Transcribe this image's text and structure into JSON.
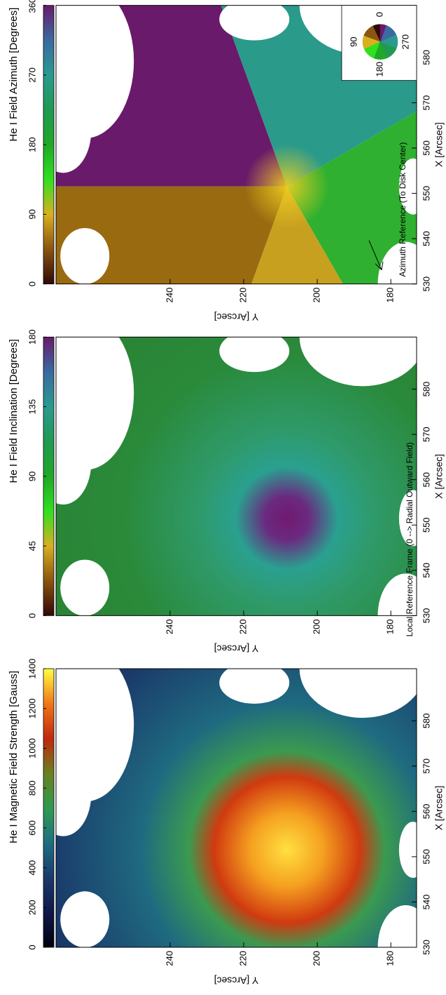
{
  "chart_data": [
    {
      "type": "image",
      "title": "He I Magnetic Field Strength [Gauss]",
      "xlabel": "X [Arcsec]",
      "ylabel": "Y [Arcsec]",
      "xlim": [
        530,
        591.5
      ],
      "xticks": [
        530,
        540,
        550,
        560,
        570,
        580
      ],
      "ylim": [
        173,
        271
      ],
      "yticks": [
        180,
        200,
        220,
        240
      ],
      "colorbar": {
        "lim": [
          0,
          1400
        ],
        "ticks": [
          0,
          200,
          400,
          600,
          800,
          1000,
          1200,
          1400
        ],
        "colors": [
          "#000010",
          "#101848",
          "#1a3a6a",
          "#1f6f80",
          "#2f9a50",
          "#6a8020",
          "#c02810",
          "#f07818",
          "#ffff40"
        ]
      }
    },
    {
      "type": "image",
      "title": "He I Field Inclination [Degrees]",
      "xlabel": "X [Arcsec]",
      "ylabel": "Y [Arcsec]",
      "xlim": [
        530,
        591.5
      ],
      "xticks": [
        530,
        540,
        550,
        560,
        570,
        580
      ],
      "ylim": [
        173,
        271
      ],
      "yticks": [
        180,
        200,
        220,
        240
      ],
      "annotation": "Local Reference Frame (0 --> Radial Outward Field)",
      "colorbar": {
        "lim": [
          0,
          180
        ],
        "ticks": [
          0,
          45,
          90,
          135,
          180
        ],
        "colors": [
          "#300808",
          "#8a5510",
          "#d8b020",
          "#30e020",
          "#20a828",
          "#209a50",
          "#2a9a90",
          "#3a6aa0",
          "#6a1a6a"
        ]
      }
    },
    {
      "type": "image",
      "title": "He I Field Azimuth [Degrees]",
      "xlabel": "X [Arcsec]",
      "ylabel": "Y [Arcsec]",
      "xlim": [
        530,
        591.5
      ],
      "xticks": [
        530,
        540,
        550,
        560,
        570,
        580
      ],
      "ylim": [
        173,
        271
      ],
      "yticks": [
        180,
        200,
        220,
        240
      ],
      "annotation": "Azimuth Reference (To Disk Center)",
      "inset": {
        "ticks": [
          0,
          90,
          180,
          270
        ]
      },
      "colorbar": {
        "lim": [
          0,
          360
        ],
        "ticks": [
          0,
          90,
          180,
          270,
          360
        ],
        "colors": [
          "#300808",
          "#8a5510",
          "#d8b020",
          "#30e020",
          "#20a828",
          "#209a50",
          "#2a9a90",
          "#3a6aa0",
          "#6a1a6a"
        ]
      }
    }
  ]
}
